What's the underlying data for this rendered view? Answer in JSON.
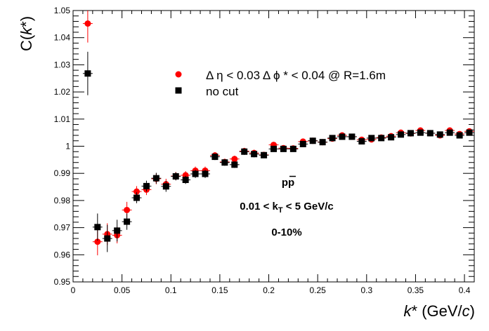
{
  "chart_data": {
    "type": "scatter",
    "ylabel": "C(k*)",
    "ylabel_main": "C(",
    "ylabel_var": "k",
    "ylabel_close": "*)",
    "xlabel": "k* (GeV/c)",
    "xlabel_var": "k",
    "xlabel_rest": "* (GeV/",
    "xlabel_c": "c",
    "xlabel_close": ")",
    "xlim": [
      0,
      0.41
    ],
    "ylim": [
      0.95,
      1.05
    ],
    "x_ticks": [
      0,
      0.05,
      0.1,
      0.15,
      0.2,
      0.25,
      0.3,
      0.35,
      0.4
    ],
    "x_tick_labels": [
      "0",
      "0.05",
      "0.1",
      "0.15",
      "0.2",
      "0.25",
      "0.3",
      "0.35",
      "0.4"
    ],
    "y_ticks": [
      0.95,
      0.96,
      0.97,
      0.98,
      0.99,
      1.0,
      1.01,
      1.02,
      1.03,
      1.04,
      1.05
    ],
    "y_tick_labels": [
      "0.95",
      "0.96",
      "0.97",
      "0.98",
      "0.99",
      "1",
      "1.01",
      "1.02",
      "1.03",
      "1.04",
      "1.05"
    ],
    "grid": false,
    "legend_placement": "top-center",
    "annotations": {
      "system": "pp",
      "kt_prefix": "0.01 < k",
      "kt_sub": "T",
      "kt_suffix": " < 5 GeV/c",
      "centrality": "0-10%"
    },
    "series": [
      {
        "name": "Δ η < 0.03 Δ ϕ * < 0.04 @ R=1.6m",
        "color": "#ff0000",
        "marker": "circle",
        "x": [
          0.015,
          0.025,
          0.035,
          0.045,
          0.055,
          0.065,
          0.075,
          0.085,
          0.095,
          0.105,
          0.115,
          0.125,
          0.135,
          0.145,
          0.155,
          0.165,
          0.175,
          0.185,
          0.195,
          0.205,
          0.215,
          0.225,
          0.235,
          0.245,
          0.255,
          0.265,
          0.275,
          0.285,
          0.295,
          0.305,
          0.315,
          0.325,
          0.335,
          0.345,
          0.355,
          0.365,
          0.375,
          0.385,
          0.395,
          0.405
        ],
        "y": [
          1.0452,
          0.9648,
          0.9676,
          0.9672,
          0.9765,
          0.9833,
          0.984,
          0.988,
          0.986,
          0.989,
          0.9893,
          0.991,
          0.991,
          0.9966,
          0.9942,
          0.9953,
          0.9982,
          0.9975,
          0.9968,
          1.0005,
          0.9993,
          0.9992,
          1.0017,
          1.002,
          1.0015,
          1.0028,
          1.004,
          1.0035,
          1.0024,
          1.0025,
          1.0032,
          1.0037,
          1.005,
          1.0047,
          1.0058,
          1.0048,
          1.004,
          1.0058,
          1.0045,
          1.0055
        ],
        "err": [
          0.007,
          0.005,
          0.004,
          0.003,
          0.003,
          0.002,
          0.002,
          0.002,
          0.002,
          0.0015,
          0.0015,
          0.0015,
          0.0015,
          0.0012,
          0.0012,
          0.0012,
          0.0012,
          0.0012,
          0.001,
          0.001,
          0.001,
          0.001,
          0.001,
          0.001,
          0.001,
          0.001,
          0.001,
          0.001,
          0.001,
          0.001,
          0.001,
          0.001,
          0.001,
          0.001,
          0.001,
          0.001,
          0.001,
          0.001,
          0.001,
          0.001
        ]
      },
      {
        "name": "no cut",
        "color": "#000000",
        "marker": "square",
        "x": [
          0.015,
          0.025,
          0.035,
          0.045,
          0.055,
          0.065,
          0.075,
          0.085,
          0.095,
          0.105,
          0.115,
          0.125,
          0.135,
          0.145,
          0.155,
          0.165,
          0.175,
          0.185,
          0.195,
          0.205,
          0.215,
          0.225,
          0.235,
          0.245,
          0.255,
          0.265,
          0.275,
          0.285,
          0.295,
          0.305,
          0.315,
          0.325,
          0.335,
          0.345,
          0.355,
          0.365,
          0.375,
          0.385,
          0.395,
          0.405
        ],
        "y": [
          1.0268,
          0.9702,
          0.966,
          0.9689,
          0.9722,
          0.981,
          0.9853,
          0.9882,
          0.9852,
          0.9889,
          0.9876,
          0.9898,
          0.9898,
          0.9961,
          0.994,
          0.9932,
          0.998,
          0.9971,
          0.9967,
          0.999,
          0.999,
          0.999,
          1.0008,
          1.002,
          1.0015,
          1.003,
          1.0035,
          1.0035,
          1.0018,
          1.003,
          1.003,
          1.0033,
          1.0043,
          1.0048,
          1.005,
          1.0048,
          1.0043,
          1.005,
          1.004,
          1.005
        ],
        "err": [
          0.008,
          0.005,
          0.005,
          0.004,
          0.003,
          0.002,
          0.002,
          0.002,
          0.002,
          0.0015,
          0.0015,
          0.0015,
          0.0015,
          0.0012,
          0.0012,
          0.0012,
          0.0012,
          0.0012,
          0.001,
          0.001,
          0.001,
          0.001,
          0.001,
          0.001,
          0.001,
          0.001,
          0.001,
          0.001,
          0.001,
          0.001,
          0.001,
          0.001,
          0.001,
          0.001,
          0.001,
          0.001,
          0.001,
          0.001,
          0.001,
          0.001
        ]
      }
    ]
  }
}
